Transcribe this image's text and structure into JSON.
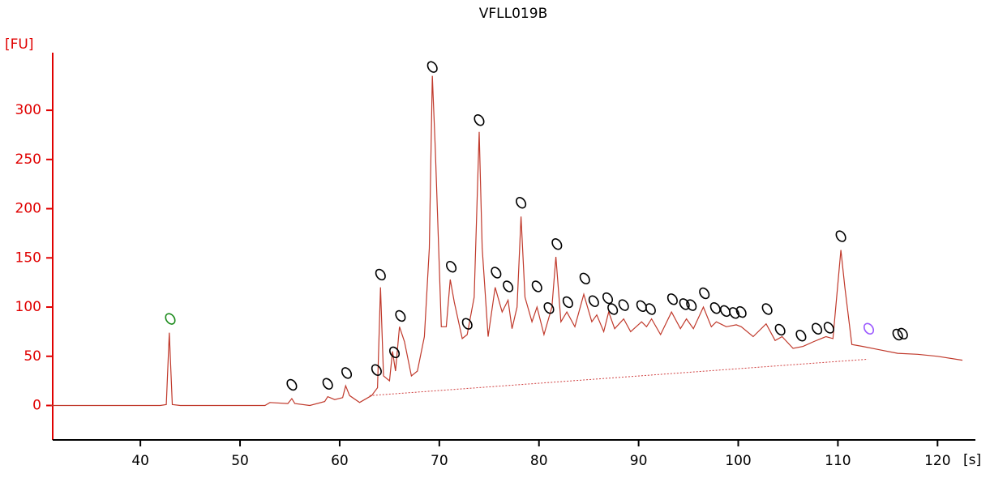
{
  "chart_data": {
    "type": "line",
    "title": "VFLL019B",
    "y_label": "[FU]",
    "x_label": "[s]",
    "xlim": [
      31.2,
      123.8
    ],
    "ylim": [
      -35,
      375
    ],
    "xticks": [
      40,
      50,
      60,
      70,
      80,
      90,
      100,
      110,
      120
    ],
    "yticks": [
      0,
      50,
      100,
      150,
      200,
      250,
      300
    ],
    "axis_color": "#e00000",
    "series": [
      {
        "color": "#c0392b",
        "x": [
          31,
          42,
          42.6,
          42.9,
          43.2,
          44,
          52.5,
          53,
          54.8,
          55.2,
          55.5,
          57,
          58.5,
          58.8,
          59.5,
          60.3,
          60.6,
          61,
          62,
          62.5,
          63.2,
          63.8,
          64.1,
          64.4,
          65,
          65.3,
          65.6,
          66,
          66.5,
          67.2,
          67.8,
          68.5,
          69.0,
          69.3,
          69.6,
          70.2,
          70.7,
          71.1,
          71.5,
          72.3,
          72.8,
          73.5,
          74.0,
          74.3,
          74.9,
          75.6,
          76.3,
          76.9,
          77.3,
          77.8,
          78.2,
          78.6,
          79.3,
          79.8,
          80.5,
          81.3,
          81.7,
          82.2,
          82.8,
          83.6,
          84.5,
          85.3,
          85.8,
          86.5,
          87.0,
          87.6,
          88.5,
          89.2,
          90.3,
          90.8,
          91.3,
          92.2,
          93.3,
          94.2,
          94.8,
          95.5,
          96.5,
          97.3,
          97.8,
          98.8,
          99.8,
          100.3,
          101.5,
          102.8,
          103.7,
          104.4,
          105.5,
          106.5,
          107.6,
          108.8,
          109.5,
          110.3,
          110.7,
          111.4,
          112.5,
          114,
          116,
          118,
          120,
          122.5
        ],
        "values": [
          0,
          0,
          1,
          74,
          1,
          0,
          0,
          3,
          2,
          7,
          2,
          0,
          4,
          9,
          6,
          8,
          20,
          10,
          3,
          6,
          10,
          18,
          120,
          30,
          25,
          55,
          35,
          80,
          65,
          30,
          35,
          70,
          160,
          335,
          260,
          80,
          80,
          128,
          105,
          68,
          72,
          110,
          278,
          160,
          70,
          120,
          95,
          107,
          78,
          100,
          192,
          110,
          85,
          100,
          72,
          100,
          151,
          85,
          95,
          80,
          113,
          85,
          92,
          75,
          95,
          78,
          88,
          75,
          85,
          80,
          88,
          72,
          95,
          78,
          88,
          78,
          100,
          80,
          85,
          80,
          82,
          80,
          70,
          83,
          66,
          70,
          58,
          60,
          65,
          70,
          68,
          158,
          120,
          62,
          60,
          57,
          53,
          52,
          50,
          46
        ]
      }
    ],
    "baseline": {
      "color": "#d04040",
      "x": [
        63,
        113
      ],
      "values": [
        10,
        47
      ]
    },
    "peaks": {
      "x": [
        43,
        55.2,
        58.8,
        60.7,
        63.7,
        64.1,
        65.5,
        66.1,
        69.3,
        71.2,
        72.8,
        74.0,
        75.7,
        76.9,
        78.2,
        79.8,
        81.0,
        81.8,
        82.9,
        84.6,
        85.5,
        86.9,
        87.4,
        88.5,
        90.3,
        91.2,
        93.4,
        94.6,
        95.3,
        96.6,
        97.7,
        98.7,
        99.6,
        100.3,
        102.9,
        104.2,
        106.3,
        107.9,
        109.1,
        110.3,
        113.1,
        116.0,
        116.5
      ],
      "values": [
        88,
        21,
        22,
        33,
        36,
        133,
        54,
        91,
        344,
        141,
        83,
        290,
        135,
        121,
        206,
        121,
        99,
        164,
        105,
        129,
        106,
        109,
        98,
        102,
        101,
        98,
        108,
        103,
        102,
        114,
        99,
        96,
        94,
        95,
        98,
        77,
        71,
        78,
        79,
        172,
        78,
        72,
        73
      ],
      "colors": [
        "#1a8a1a",
        "#000",
        "#000",
        "#000",
        "#000",
        "#000",
        "#000",
        "#000",
        "#000",
        "#000",
        "#000",
        "#000",
        "#000",
        "#000",
        "#000",
        "#000",
        "#000",
        "#000",
        "#000",
        "#000",
        "#000",
        "#000",
        "#000",
        "#000",
        "#000",
        "#000",
        "#000",
        "#000",
        "#000",
        "#000",
        "#000",
        "#000",
        "#000",
        "#000",
        "#000",
        "#000",
        "#000",
        "#000",
        "#000",
        "#000",
        "#9b59ff",
        "#000",
        "#000"
      ]
    }
  }
}
